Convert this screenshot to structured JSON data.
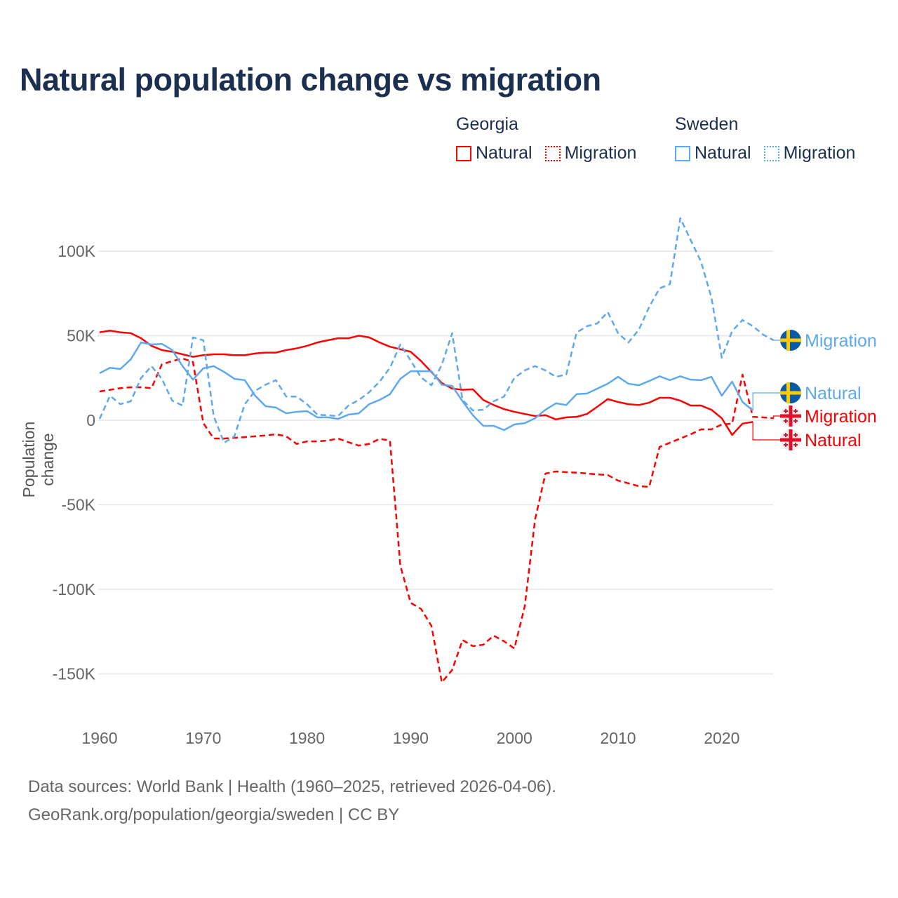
{
  "title": "Natural population change vs migration",
  "legend": {
    "groups": [
      {
        "name": "Georgia",
        "color": "#ff0000",
        "items": [
          "Natural",
          "Migration"
        ]
      },
      {
        "name": "Sweden",
        "color": "#5ea9ed",
        "items": [
          "Natural",
          "Migration"
        ]
      }
    ]
  },
  "footer": {
    "line1": "Data sources: World Bank | Health (1960–2025, retrieved 2026-04-06).",
    "line2": "GeoRank.org/population/georgia/sweden | CC BY"
  },
  "chart_data": {
    "type": "line",
    "title": "Natural population change vs migration",
    "xlabel": "",
    "ylabel": "Population change",
    "xlim": [
      1960,
      2025
    ],
    "ylim": [
      -170000,
      125000
    ],
    "x_ticks": [
      1960,
      1970,
      1980,
      1990,
      2000,
      2010,
      2020
    ],
    "x_tick_labels": [
      "1960",
      "1970",
      "1980",
      "1990",
      "2000",
      "2010",
      "2020"
    ],
    "y_ticks": [
      100000,
      50000,
      0,
      -50000,
      -100000,
      -150000
    ],
    "y_tick_labels": [
      "100K",
      "50K",
      "0",
      "-50K",
      "-100K",
      "-150K"
    ],
    "grid": true,
    "legend_position": "top-right",
    "series": [
      {
        "name": "Georgia Natural",
        "country": "Georgia",
        "kind": "Natural",
        "color": "#ff0000",
        "dash": "solid",
        "start": 1960,
        "end_label": "Natural",
        "values_k": [
          52,
          53,
          52,
          51.5,
          48.5,
          44,
          41.5,
          40.5,
          39,
          37.5,
          38.5,
          39,
          39,
          38.5,
          38.5,
          39.5,
          40,
          40,
          41.5,
          42.5,
          44,
          46,
          47.3,
          48.5,
          48.5,
          50,
          49,
          46,
          43.5,
          42,
          40.5,
          35,
          28.5,
          22,
          18.7,
          18,
          18.3,
          12,
          9,
          6.6,
          5,
          3.7,
          2.5,
          3,
          0.5,
          1.7,
          2,
          3.7,
          8,
          12.5,
          10.8,
          9.5,
          9,
          10.4,
          13.3,
          13.3,
          11.6,
          8.7,
          8.7,
          6.2,
          1.2,
          -8.7,
          -2,
          -1
        ]
      },
      {
        "name": "Georgia Migration",
        "country": "Georgia",
        "kind": "Migration",
        "color": "#ff0000",
        "dash": "dashed",
        "start": 1960,
        "end_label": "Migration",
        "values_k": [
          17,
          18,
          19,
          19.5,
          19.5,
          19,
          33,
          35,
          36.5,
          34.5,
          -1.7,
          -10.8,
          -10.8,
          -10.4,
          -10,
          -9.5,
          -9,
          -8.3,
          -9.5,
          -14,
          -12.5,
          -12.5,
          -12,
          -10.8,
          -13,
          -15,
          -14,
          -11,
          -12,
          -86,
          -108,
          -111.6,
          -121.6,
          -155,
          -147.7,
          -130,
          -133.6,
          -132.8,
          -127.4,
          -130.7,
          -135,
          -110,
          -58.5,
          -31.5,
          -30.3,
          -30.7,
          -31,
          -31.5,
          -32,
          -32.4,
          -35.7,
          -37.3,
          -39,
          -39.4,
          -15.8,
          -13.3,
          -10.8,
          -8.3,
          -5.4,
          -5.4,
          -2.5,
          -2,
          27,
          2,
          1.7,
          1.2
        ]
      },
      {
        "name": "Sweden Natural",
        "country": "Sweden",
        "kind": "Natural",
        "color": "#5ea9ed",
        "dash": "solid",
        "start": 1960,
        "end_label": "Natural",
        "values_k": [
          27.8,
          31,
          30.3,
          36,
          46,
          44.8,
          45.2,
          41.5,
          32,
          24,
          30.7,
          32,
          28.6,
          24.5,
          23.7,
          14.5,
          8.3,
          7.5,
          4.1,
          5,
          5.4,
          1.7,
          1.7,
          0.8,
          3.3,
          4.1,
          9.5,
          12,
          15.4,
          24.5,
          29,
          29,
          29,
          21,
          20.3,
          11.2,
          2.9,
          -3.3,
          -3.3,
          -5.8,
          -2.5,
          -1.7,
          1.2,
          6.2,
          10,
          9,
          15.4,
          15.8,
          18.7,
          21.6,
          25.7,
          21.6,
          20.7,
          23.2,
          26,
          23.7,
          26,
          24,
          23.7,
          25.7,
          14.5,
          22.8,
          10.8,
          5.8
        ]
      },
      {
        "name": "Sweden Migration",
        "country": "Sweden",
        "kind": "Migration",
        "color": "#5ea9ed",
        "dash": "dashed",
        "start": 1960,
        "end_label": "Migration",
        "values_k": [
          0.8,
          14.5,
          9.5,
          11.2,
          25,
          32,
          24.5,
          11.6,
          8.7,
          49,
          47.3,
          2.5,
          -13.3,
          -9.5,
          9.5,
          17.4,
          21,
          23.7,
          14,
          14,
          9.5,
          3.3,
          2.9,
          2.5,
          8.7,
          12,
          16.6,
          22.8,
          31,
          44.8,
          35.3,
          25.3,
          20.7,
          32.8,
          51.5,
          12,
          5.8,
          6.2,
          11.2,
          14,
          25,
          29.5,
          32,
          29.5,
          25.7,
          27,
          51.9,
          55.6,
          57.3,
          64,
          51.5,
          46,
          53.5,
          67,
          78,
          80.5,
          119.5,
          106.6,
          93.8,
          72.6,
          37,
          52.7,
          59.3,
          55.6,
          50.6,
          47.3
        ]
      }
    ]
  }
}
